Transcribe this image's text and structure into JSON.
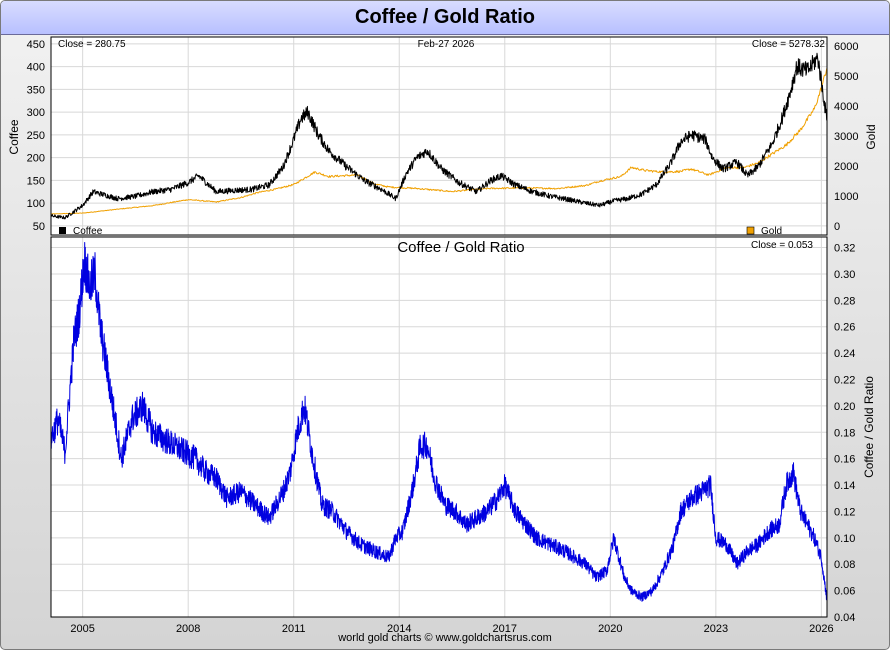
{
  "title": "Coffee / Gold Ratio",
  "footer": "world gold charts © www.goldchartsrus.com",
  "top_panel": {
    "close_left": "Close = 280.75",
    "date": "Feb-27  2026",
    "close_right": "Close = 5278.32",
    "legend_coffee": "Coffee",
    "legend_gold": "Gold"
  },
  "bottom_panel": {
    "title": "Coffee  /  Gold Ratio",
    "close": "Close = 0.053"
  },
  "colors": {
    "coffee": "#000000",
    "gold": "#f0a000",
    "ratio": "#0000e0",
    "grid": "#d8d8d8"
  },
  "chart_data": [
    {
      "type": "line",
      "title": "",
      "xlabel": "",
      "ylabel": "Coffee",
      "y2label": "Gold",
      "xlim": [
        2004.1,
        2026.16
      ],
      "ylim": [
        30,
        465
      ],
      "y2lim": [
        -300,
        6300
      ],
      "yticks": [
        50,
        100,
        150,
        200,
        250,
        300,
        350,
        400,
        450
      ],
      "y2ticks": [
        0,
        1000,
        2000,
        3000,
        4000,
        5000,
        6000
      ],
      "grid": true,
      "legend_position": "bottom",
      "series": [
        {
          "name": "Coffee",
          "axis": "left",
          "x": [
            2004.1,
            2004.5,
            2005.0,
            2005.3,
            2006.0,
            2006.5,
            2007.0,
            2007.5,
            2008.0,
            2008.3,
            2008.8,
            2009.3,
            2009.8,
            2010.3,
            2010.7,
            2011.0,
            2011.2,
            2011.4,
            2011.7,
            2012.0,
            2012.5,
            2013.0,
            2013.5,
            2013.9,
            2014.2,
            2014.5,
            2014.8,
            2015.2,
            2015.7,
            2016.2,
            2016.6,
            2016.9,
            2017.3,
            2017.8,
            2018.3,
            2018.8,
            2019.3,
            2019.7,
            2020.1,
            2020.5,
            2020.9,
            2021.3,
            2021.7,
            2022.0,
            2022.3,
            2022.7,
            2022.9,
            2023.2,
            2023.6,
            2023.9,
            2024.2,
            2024.6,
            2024.9,
            2025.1,
            2025.3,
            2025.6,
            2025.9,
            2026.16
          ],
          "values": [
            72,
            68,
            95,
            125,
            110,
            115,
            125,
            130,
            145,
            160,
            125,
            128,
            130,
            140,
            180,
            240,
            285,
            300,
            250,
            215,
            180,
            150,
            130,
            110,
            165,
            200,
            215,
            175,
            145,
            125,
            150,
            160,
            140,
            125,
            115,
            108,
            100,
            95,
            105,
            110,
            120,
            140,
            185,
            235,
            250,
            240,
            200,
            175,
            190,
            160,
            180,
            230,
            290,
            340,
            400,
            390,
            420,
            280.75
          ]
        },
        {
          "name": "Gold",
          "axis": "right",
          "x": [
            2004.1,
            2005.0,
            2006.0,
            2007.0,
            2008.0,
            2008.8,
            2009.5,
            2010.0,
            2010.5,
            2011.0,
            2011.6,
            2012.0,
            2012.8,
            2013.3,
            2013.7,
            2014.5,
            2015.5,
            2016.5,
            2017.5,
            2018.5,
            2019.3,
            2019.7,
            2020.3,
            2020.6,
            2021.0,
            2021.5,
            2022.0,
            2022.3,
            2022.8,
            2023.3,
            2023.8,
            2024.2,
            2024.6,
            2025.0,
            2025.4,
            2025.8,
            2026.0,
            2026.16
          ],
          "values": [
            400,
            430,
            560,
            680,
            880,
            800,
            950,
            1120,
            1230,
            1380,
            1800,
            1650,
            1700,
            1400,
            1300,
            1250,
            1150,
            1250,
            1270,
            1250,
            1350,
            1500,
            1650,
            1950,
            1850,
            1800,
            1820,
            1900,
            1700,
            1950,
            1950,
            2100,
            2400,
            2700,
            3200,
            3900,
            4600,
            5278.32
          ]
        }
      ]
    },
    {
      "type": "line",
      "title": "Coffee  /  Gold Ratio",
      "xlabel": "",
      "ylabel": "Coffee / Gold Ratio",
      "xlim": [
        2004.1,
        2026.16
      ],
      "ylim": [
        0.04,
        0.328
      ],
      "yticks": [
        0.04,
        0.06,
        0.08,
        0.1,
        0.12,
        0.14,
        0.16,
        0.18,
        0.2,
        0.22,
        0.24,
        0.26,
        0.28,
        0.3,
        0.32
      ],
      "xticks": [
        "2005",
        "2008",
        "2011",
        "2014",
        "2017",
        "2020",
        "2023",
        "2026"
      ],
      "xtick_values": [
        2005,
        2008,
        2011,
        2014,
        2017,
        2020,
        2023,
        2026
      ],
      "grid": true,
      "series": [
        {
          "name": "Coffee / Gold Ratio",
          "x": [
            2004.1,
            2004.3,
            2004.5,
            2004.75,
            2004.9,
            2005.05,
            2005.2,
            2005.35,
            2005.5,
            2005.8,
            2006.1,
            2006.4,
            2006.7,
            2007.0,
            2007.3,
            2007.6,
            2007.9,
            2008.2,
            2008.5,
            2008.8,
            2009.1,
            2009.5,
            2009.9,
            2010.3,
            2010.7,
            2010.9,
            2011.1,
            2011.3,
            2011.55,
            2011.8,
            2012.1,
            2012.5,
            2012.9,
            2013.3,
            2013.7,
            2013.9,
            2014.1,
            2014.4,
            2014.6,
            2014.8,
            2015.0,
            2015.3,
            2015.6,
            2015.9,
            2016.2,
            2016.5,
            2016.8,
            2017.0,
            2017.3,
            2017.6,
            2017.9,
            2018.3,
            2018.7,
            2019.0,
            2019.3,
            2019.6,
            2019.9,
            2020.1,
            2020.4,
            2020.6,
            2020.9,
            2021.2,
            2021.5,
            2021.8,
            2022.0,
            2022.3,
            2022.6,
            2022.85,
            2023.0,
            2023.3,
            2023.6,
            2023.9,
            2024.2,
            2024.5,
            2024.8,
            2025.0,
            2025.2,
            2025.4,
            2025.6,
            2025.8,
            2026.0,
            2026.16
          ],
          "values": [
            0.175,
            0.19,
            0.165,
            0.25,
            0.27,
            0.31,
            0.29,
            0.3,
            0.26,
            0.21,
            0.16,
            0.19,
            0.2,
            0.18,
            0.175,
            0.17,
            0.165,
            0.16,
            0.15,
            0.145,
            0.13,
            0.135,
            0.125,
            0.115,
            0.135,
            0.15,
            0.18,
            0.2,
            0.16,
            0.125,
            0.12,
            0.105,
            0.095,
            0.09,
            0.085,
            0.1,
            0.105,
            0.14,
            0.17,
            0.17,
            0.145,
            0.125,
            0.12,
            0.11,
            0.115,
            0.12,
            0.13,
            0.14,
            0.12,
            0.11,
            0.1,
            0.095,
            0.09,
            0.085,
            0.08,
            0.07,
            0.075,
            0.1,
            0.07,
            0.06,
            0.055,
            0.06,
            0.075,
            0.095,
            0.12,
            0.13,
            0.135,
            0.14,
            0.1,
            0.095,
            0.08,
            0.09,
            0.095,
            0.105,
            0.11,
            0.14,
            0.15,
            0.12,
            0.11,
            0.1,
            0.085,
            0.053
          ]
        }
      ]
    }
  ]
}
